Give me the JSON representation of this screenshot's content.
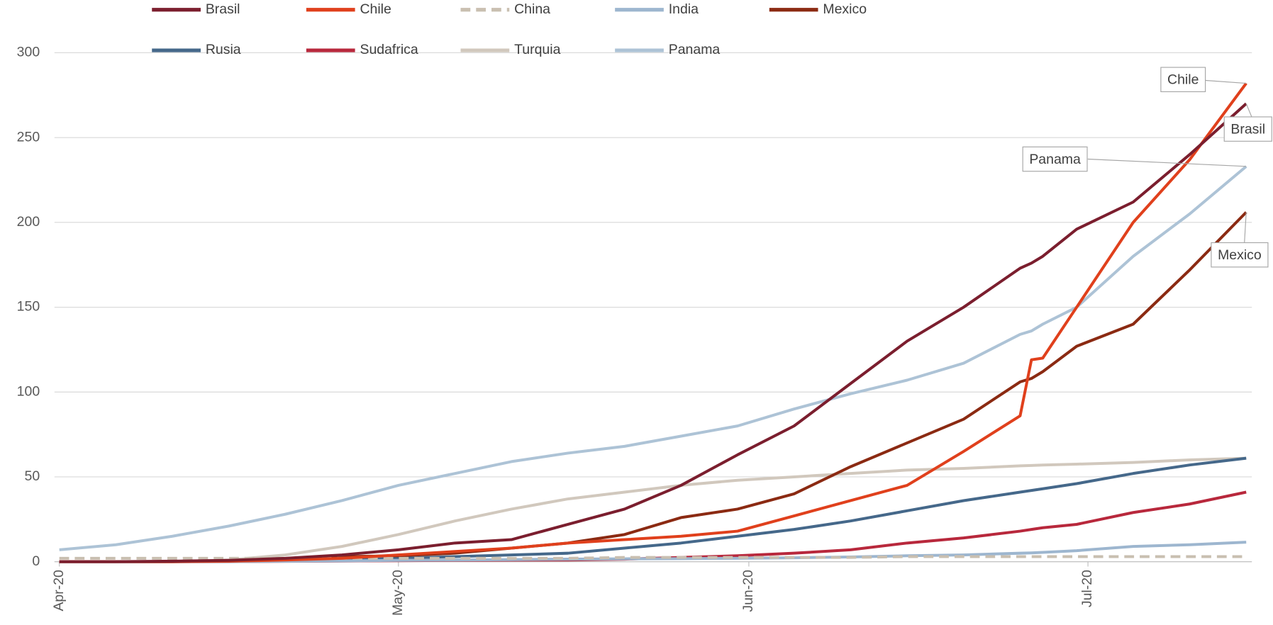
{
  "chart_data": {
    "type": "line",
    "x": [
      0,
      5,
      10,
      15,
      20,
      25,
      30,
      35,
      40,
      45,
      50,
      55,
      60,
      65,
      70,
      75,
      80,
      85,
      86,
      87,
      90,
      95,
      100,
      105
    ],
    "xlim": [
      0,
      105.5
    ],
    "xticks": [
      {
        "value": 0,
        "label": "Apr-20"
      },
      {
        "value": 30,
        "label": "May-20"
      },
      {
        "value": 61,
        "label": "Jun-20"
      },
      {
        "value": 91,
        "label": "Jul-20"
      }
    ],
    "ylim": [
      0,
      300
    ],
    "yticks": [
      0,
      50,
      100,
      150,
      200,
      250,
      300
    ],
    "grid": true,
    "legend": "top",
    "series": [
      {
        "name": "Brasil",
        "color": "#7b1e2e",
        "values": [
          0,
          0,
          0.3,
          0.8,
          2,
          4,
          7,
          11,
          13,
          22,
          31,
          45,
          63,
          80,
          105,
          130,
          150,
          173,
          176,
          180,
          196,
          212,
          240,
          270
        ]
      },
      {
        "name": "Chile",
        "color": "#e0401c",
        "values": [
          0,
          0,
          0,
          0.3,
          1,
          2,
          4,
          6,
          8,
          11,
          13,
          15,
          18,
          27,
          36,
          45,
          65,
          86,
          119,
          120,
          150,
          200,
          237,
          282
        ]
      },
      {
        "name": "China",
        "color": "#c9bfb0",
        "dash": true,
        "values": [
          2,
          2,
          2,
          2,
          2,
          2,
          2,
          2,
          2,
          2,
          2.5,
          2.5,
          2.5,
          2.5,
          2.5,
          3,
          3,
          3,
          3,
          3,
          3,
          3,
          3,
          3
        ]
      },
      {
        "name": "India",
        "color": "#9db6cf",
        "values": [
          0,
          0,
          0,
          0,
          0.3,
          0.5,
          0.8,
          1,
          1.2,
          1.5,
          1.7,
          1.8,
          2,
          2.3,
          2.8,
          3.5,
          4,
          5,
          5.2,
          5.5,
          6.5,
          9,
          10,
          11.5
        ]
      },
      {
        "name": "Mexico",
        "color": "#8b2a12",
        "values": [
          0,
          0,
          0,
          0.5,
          1.5,
          3,
          3.5,
          5,
          8,
          11,
          16,
          26,
          31,
          40,
          56,
          70,
          84,
          106,
          108,
          112,
          127,
          140,
          172,
          206
        ]
      },
      {
        "name": "Rusia",
        "color": "#45688a",
        "values": [
          0,
          0,
          0,
          0.2,
          0.5,
          1,
          2,
          3,
          4,
          5,
          8,
          11,
          15,
          19,
          24,
          30,
          36,
          41,
          42,
          43,
          46,
          52,
          57,
          61
        ]
      },
      {
        "name": "Sudafrica",
        "color": "#b8283c",
        "values": [
          0,
          0,
          0,
          0,
          0.2,
          0.4,
          0.6,
          0.8,
          0.9,
          1,
          1.5,
          2.5,
          3.5,
          5,
          7,
          11,
          14,
          18,
          19,
          20,
          22,
          29,
          34,
          41
        ]
      },
      {
        "name": "Turquia",
        "color": "#d1c8bd",
        "values": [
          0,
          0,
          0,
          1,
          4,
          9,
          16,
          24,
          31,
          37,
          41,
          45,
          48,
          50,
          52,
          54,
          55,
          56.5,
          56.7,
          57,
          57.5,
          58.5,
          60,
          61
        ]
      },
      {
        "name": "Panama",
        "color": "#adc3d6",
        "values": [
          7,
          10,
          15,
          21,
          28,
          36,
          45,
          52,
          59,
          64,
          68,
          74,
          80,
          90,
          99,
          107,
          117,
          134,
          136,
          140,
          150,
          180,
          205,
          233
        ]
      }
    ],
    "annotations": [
      "Chile",
      "Brasil",
      "Panama",
      "Mexico"
    ]
  }
}
